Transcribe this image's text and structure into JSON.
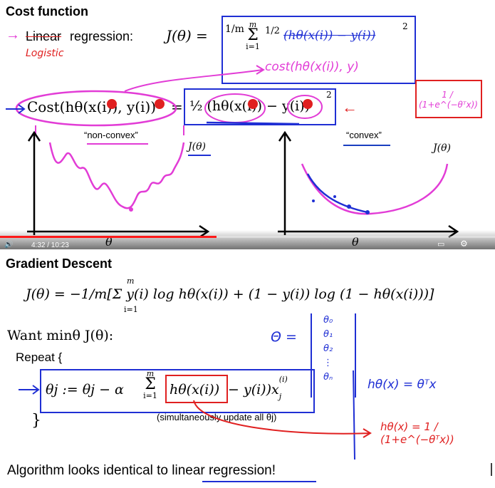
{
  "cost": {
    "heading": "Cost function",
    "linear_word": "Linear",
    "regression_label": "regression:",
    "handwritten_logistic": "Logistic",
    "j_lhs": "J(θ) =",
    "frac": "1/m",
    "sum_top": "m",
    "sum_bottom": "i=1",
    "half": "1/2",
    "squared_term": "(hθ(x(i)) − y(i))",
    "square": "2",
    "handwritten_cost": "cost(hθ(x(i)), y)",
    "cost_lhs": "Cost(hθ(x(i)), y(i))",
    "equals": "=",
    "cost_rhs": "½ (hθ(x(i)) − y(i))",
    "sigmoid": "1 / (1+e^(−θᵀx))",
    "nonconvex_label": "“non-convex”",
    "convex_label": "“convex”",
    "j_theta_left": "J(θ)",
    "j_theta_right": "J(θ)",
    "theta_axis_left": "θ",
    "theta_axis_right": "θ"
  },
  "player": {
    "time": "4:32 / 10:23",
    "progress": 0.437,
    "accent": "#ff1a1a"
  },
  "gd": {
    "heading": "Gradient Descent",
    "j_formula": "J(θ) = −1/m[Σ y(i) log hθ(x(i)) + (1 − y(i)) log (1 − hθ(x(i)))]",
    "sum_top": "m",
    "sum_bottom": "i=1",
    "want": "Want minθ J(θ):",
    "theta_vector_label": "Θ =",
    "theta_vector": [
      "θ₀",
      "θ₁",
      "θ₂",
      "⋮",
      "θₙ"
    ],
    "repeat": "Repeat {",
    "update_lhs": "θj := θj − α",
    "update_sum_top": "m",
    "update_sum_bottom": "i=1",
    "update_h": "hθ(x(i))",
    "update_rest": "− y(i))x",
    "update_sup": "(i)",
    "update_sub": "j",
    "simul": "(simultaneously update all θj)",
    "close_brace": "}",
    "h_linear": "hθ(x) = θᵀx",
    "h_logistic": "hθ(x) = 1 / (1+e^(−θᵀx))",
    "conclusion": "Algorithm looks identical to linear regression!"
  },
  "colors": {
    "blue": "#1f2fd4",
    "magenta": "#e23cd6",
    "red": "#e02020",
    "ink_blue": "#1a3fc0"
  }
}
